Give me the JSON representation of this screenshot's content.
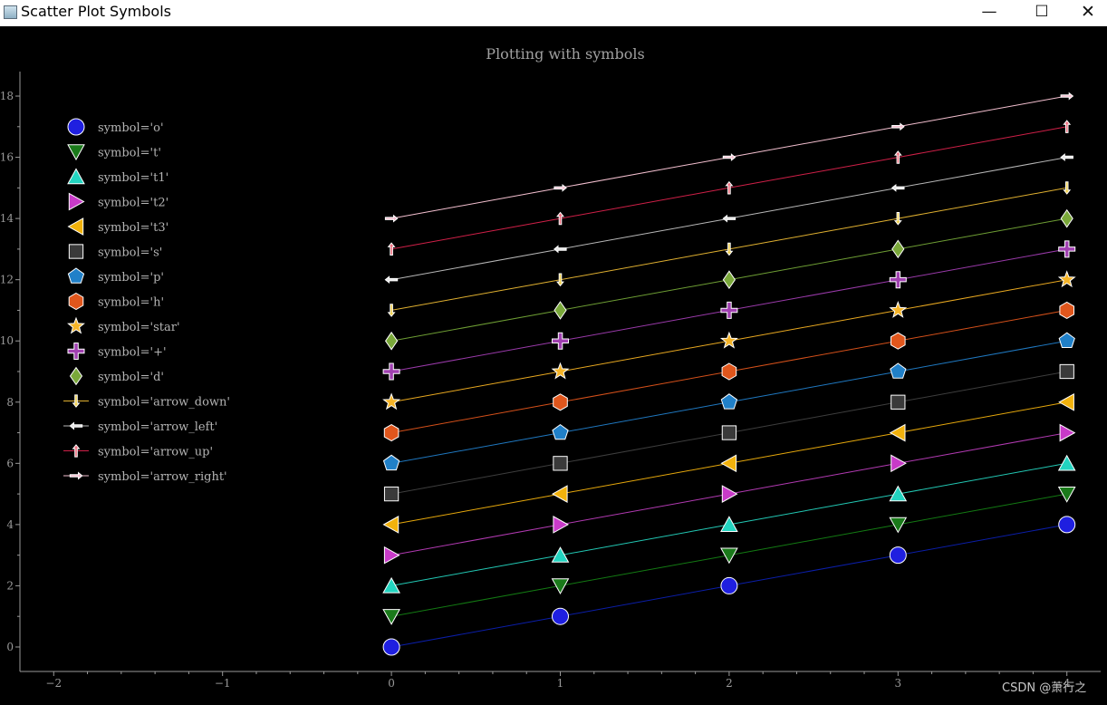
{
  "window": {
    "title": "Scatter Plot Symbols",
    "minimize_glyph": "—",
    "maximize_glyph": "☐",
    "close_glyph": "✕"
  },
  "watermark": "CSDN @萧行之",
  "chart_data": {
    "type": "scatter",
    "title": "Plotting with symbols",
    "xlabel": "",
    "ylabel": "",
    "xlim": [
      -2.2,
      4.2
    ],
    "ylim": [
      -0.8,
      18.8
    ],
    "x_ticks": [
      -2,
      -1,
      0,
      1,
      2,
      3,
      4
    ],
    "y_ticks": [
      0,
      2,
      4,
      6,
      8,
      10,
      12,
      14,
      16,
      18
    ],
    "grid": false,
    "legend_position": "top-left",
    "x": [
      0,
      1,
      2,
      3,
      4
    ],
    "series": [
      {
        "name": "symbol='o'",
        "symbol": "o",
        "color": "#1f1fe0",
        "line": "#0b1ea8",
        "values": [
          0,
          1,
          2,
          3,
          4
        ]
      },
      {
        "name": "symbol='t'",
        "symbol": "t",
        "color": "#1a7a1a",
        "line": "#137a13",
        "values": [
          1,
          2,
          3,
          4,
          5
        ]
      },
      {
        "name": "symbol='t1'",
        "symbol": "t1",
        "color": "#22d4c0",
        "line": "#22c8b4",
        "values": [
          2,
          3,
          4,
          5,
          6
        ]
      },
      {
        "name": "symbol='t2'",
        "symbol": "t2",
        "color": "#c83ac8",
        "line": "#b23ab2",
        "values": [
          3,
          4,
          5,
          6,
          7
        ]
      },
      {
        "name": "symbol='t3'",
        "symbol": "t3",
        "color": "#f2b20c",
        "line": "#e6a80c",
        "values": [
          4,
          5,
          6,
          7,
          8
        ]
      },
      {
        "name": "symbol='s'",
        "symbol": "s",
        "color": "#3a3a3a",
        "line": "#3e3e3e",
        "values": [
          5,
          6,
          7,
          8,
          9
        ]
      },
      {
        "name": "symbol='p'",
        "symbol": "p",
        "color": "#2080c8",
        "line": "#1f78c0",
        "values": [
          6,
          7,
          8,
          9,
          10
        ]
      },
      {
        "name": "symbol='h'",
        "symbol": "h",
        "color": "#e0561c",
        "line": "#d4501a",
        "values": [
          7,
          8,
          9,
          10,
          11
        ]
      },
      {
        "name": "symbol='star'",
        "symbol": "star",
        "color": "#f5b428",
        "line": "#e8a820",
        "values": [
          8,
          9,
          10,
          11,
          12
        ]
      },
      {
        "name": "symbol='+'",
        "symbol": "+",
        "color": "#a040b0",
        "line": "#9a3aaa",
        "values": [
          9,
          10,
          11,
          12,
          13
        ]
      },
      {
        "name": "symbol='d'",
        "symbol": "d",
        "color": "#7aa83a",
        "line": "#6e9e34",
        "values": [
          10,
          11,
          12,
          13,
          14
        ]
      },
      {
        "name": "symbol='arrow_down'",
        "symbol": "arrow_down",
        "color": "#f0d050",
        "line": "#e0b030",
        "values": [
          11,
          12,
          13,
          14,
          15
        ]
      },
      {
        "name": "symbol='arrow_left'",
        "symbol": "arrow_left",
        "color": "#e6e6e6",
        "line": "#b8b8b8",
        "values": [
          12,
          13,
          14,
          15,
          16
        ]
      },
      {
        "name": "symbol='arrow_up'",
        "symbol": "arrow_up",
        "color": "#f07080",
        "line": "#d02048",
        "values": [
          13,
          14,
          15,
          16,
          17
        ]
      },
      {
        "name": "symbol='arrow_right'",
        "symbol": "arrow_right",
        "color": "#f4c0d0",
        "line": "#f4c0d0",
        "values": [
          14,
          15,
          16,
          17,
          18
        ]
      }
    ]
  }
}
